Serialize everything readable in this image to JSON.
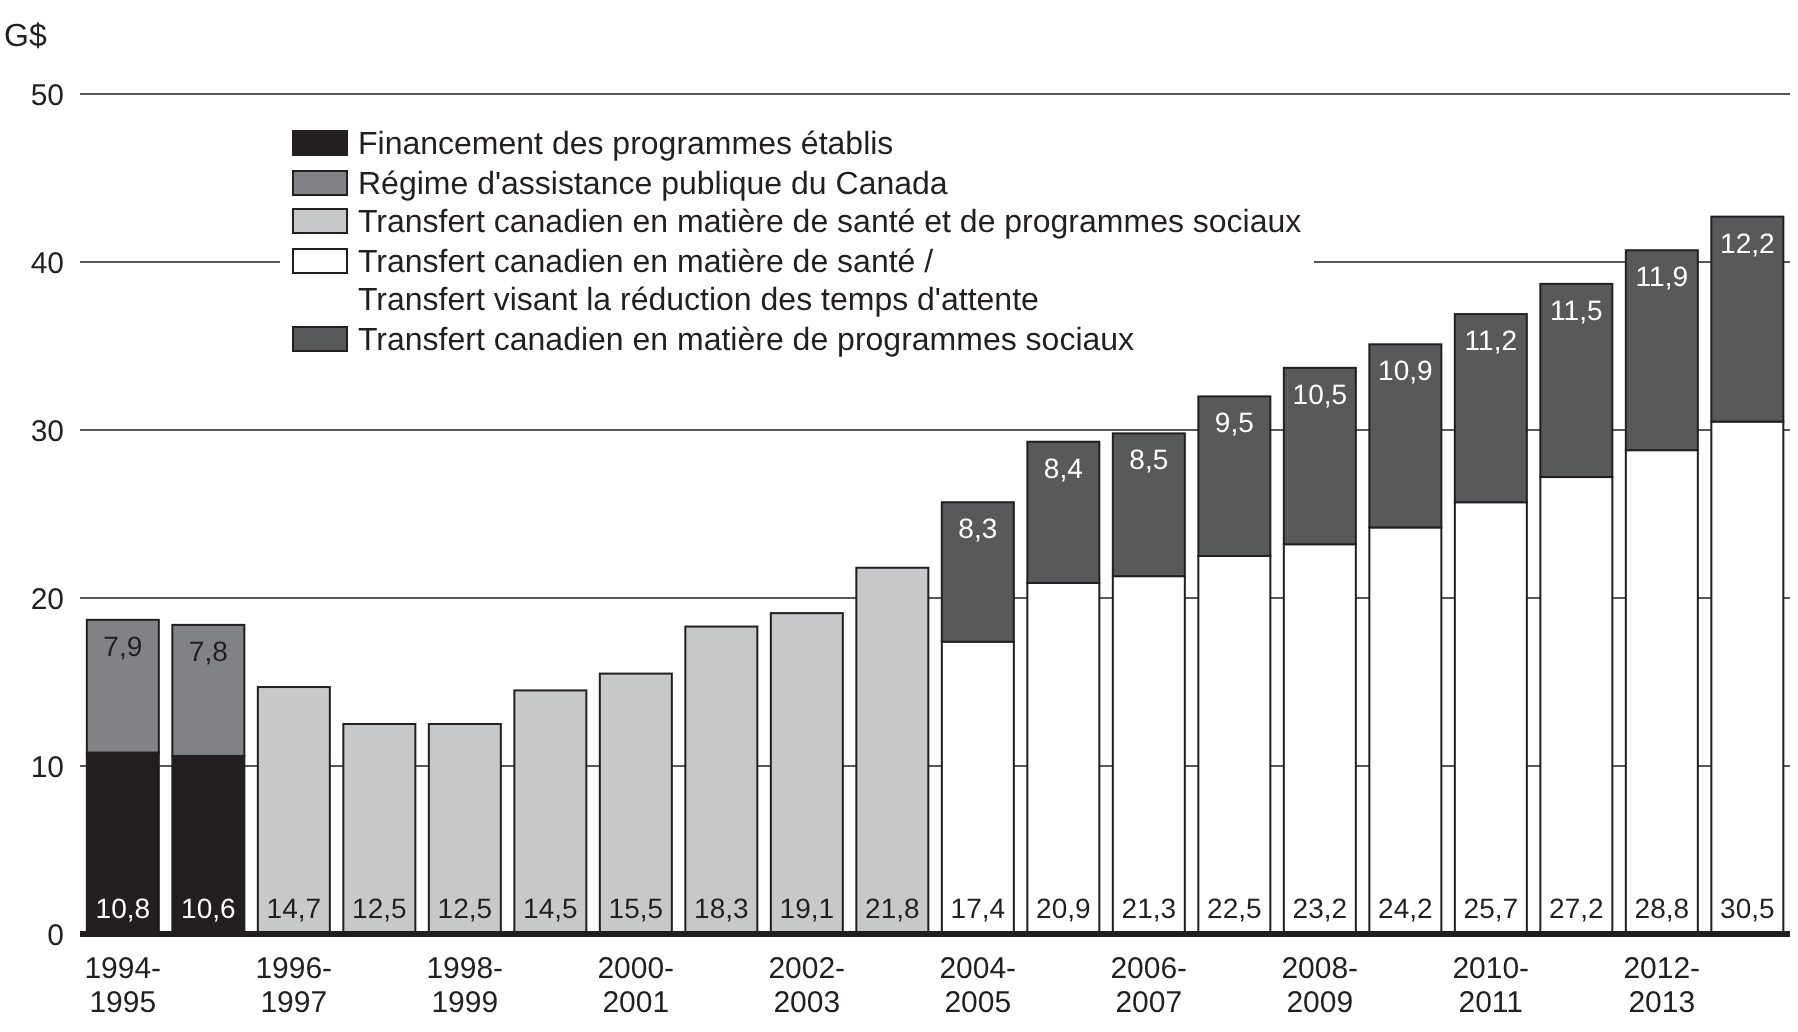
{
  "chart_data": {
    "type": "bar",
    "stacked": true,
    "ylabel": "G$",
    "categories": [
      "1994-1995",
      null,
      "1996-1997",
      null,
      "1998-1999",
      null,
      "2000-2001",
      null,
      "2002-2003",
      null,
      "2004-2005",
      null,
      "2006-2007",
      null,
      "2008-2009",
      null,
      "2010-2011",
      null,
      "2012-2013",
      null
    ],
    "series": [
      {
        "name": "Financement des programmes établis",
        "color": "#231f20",
        "values": [
          10.8,
          10.6,
          null,
          null,
          null,
          null,
          null,
          null,
          null,
          null,
          null,
          null,
          null,
          null,
          null,
          null,
          null,
          null,
          null,
          null
        ],
        "value_labels": [
          "10,8",
          "10,6",
          null,
          null,
          null,
          null,
          null,
          null,
          null,
          null,
          null,
          null,
          null,
          null,
          null,
          null,
          null,
          null,
          null,
          null
        ]
      },
      {
        "name": "Régime d'assistance publique du Canada",
        "color": "#808285",
        "values": [
          7.9,
          7.8,
          null,
          null,
          null,
          null,
          null,
          null,
          null,
          null,
          null,
          null,
          null,
          null,
          null,
          null,
          null,
          null,
          null,
          null
        ],
        "value_labels": [
          "7,9",
          "7,8",
          null,
          null,
          null,
          null,
          null,
          null,
          null,
          null,
          null,
          null,
          null,
          null,
          null,
          null,
          null,
          null,
          null,
          null
        ]
      },
      {
        "name": "Transfert canadien en matière de santé et de programmes sociaux",
        "color": "#c7c8ca",
        "values": [
          null,
          null,
          14.7,
          12.5,
          12.5,
          14.5,
          15.5,
          18.3,
          19.1,
          21.8,
          null,
          null,
          null,
          null,
          null,
          null,
          null,
          null,
          null,
          null
        ],
        "value_labels": [
          null,
          null,
          "14,7",
          "12,5",
          "12,5",
          "14,5",
          "15,5",
          "18,3",
          "19,1",
          "21,8",
          null,
          null,
          null,
          null,
          null,
          null,
          null,
          null,
          null,
          null
        ]
      },
      {
        "name": "Transfert canadien en matière de santé / Transfert visant la réduction des temps d'attente",
        "color": "#ffffff",
        "values": [
          null,
          null,
          null,
          null,
          null,
          null,
          null,
          null,
          null,
          null,
          17.4,
          20.9,
          21.3,
          22.5,
          23.2,
          24.2,
          25.7,
          27.2,
          28.8,
          30.5
        ],
        "value_labels": [
          null,
          null,
          null,
          null,
          null,
          null,
          null,
          null,
          null,
          null,
          "17,4",
          "20,9",
          "21,3",
          "22,5",
          "23,2",
          "24,2",
          "25,7",
          "27,2",
          "28,8",
          "30,5"
        ]
      },
      {
        "name": "Transfert canadien en matière de programmes sociaux",
        "color": "#58595b",
        "values": [
          null,
          null,
          null,
          null,
          null,
          null,
          null,
          null,
          null,
          null,
          8.3,
          8.4,
          8.5,
          9.5,
          10.5,
          10.9,
          11.2,
          11.5,
          11.9,
          12.2
        ],
        "value_labels": [
          null,
          null,
          null,
          null,
          null,
          null,
          null,
          null,
          null,
          null,
          "8,3",
          "8,4",
          "8,5",
          "9,5",
          "10,5",
          "10,9",
          "11,2",
          "11,5",
          "11,9",
          "12,2"
        ]
      }
    ],
    "ylim": [
      0,
      50
    ],
    "yticks": [
      0,
      10,
      20,
      30,
      40,
      50
    ],
    "grid": "y",
    "legend": "top left"
  }
}
